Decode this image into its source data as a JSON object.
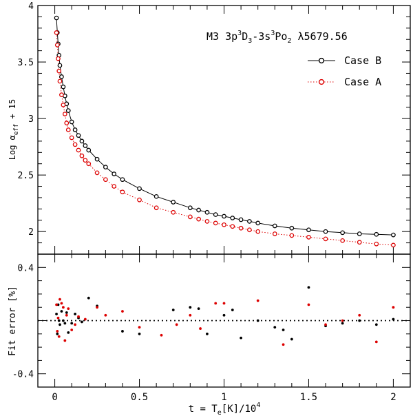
{
  "chart_data": [
    {
      "panel": "top",
      "type": "line",
      "title_parts": {
        "pre": "M3 3p",
        "sup1": "3",
        "mid1": "D",
        "sub1": "3",
        "mid2": "-3s",
        "sup2": "3",
        "mid3": "Po",
        "sub2": "2",
        "post": " λ5679.56"
      },
      "ylabel_parts": {
        "pre": "Log α",
        "sub": "eff",
        "post": " + 15"
      },
      "xlim": [
        -0.1,
        2.1
      ],
      "ylim": [
        1.8,
        4.0
      ],
      "yticks": [
        2,
        2.5,
        3,
        3.5,
        4
      ],
      "ytick_labels": [
        "2",
        "2.5",
        "3",
        "3.5",
        "4"
      ],
      "legend_position": "top-right",
      "series": [
        {
          "name": "Case B",
          "color": "#000000",
          "linestyle": "solid",
          "x": [
            0.01,
            0.015,
            0.02,
            0.025,
            0.03,
            0.04,
            0.05,
            0.06,
            0.07,
            0.08,
            0.1,
            0.12,
            0.14,
            0.16,
            0.18,
            0.2,
            0.25,
            0.3,
            0.35,
            0.4,
            0.5,
            0.6,
            0.7,
            0.8,
            0.85,
            0.9,
            0.95,
            1.0,
            1.05,
            1.1,
            1.15,
            1.2,
            1.3,
            1.4,
            1.5,
            1.6,
            1.7,
            1.8,
            1.9,
            2.0
          ],
          "y": [
            3.89,
            3.76,
            3.66,
            3.56,
            3.47,
            3.37,
            3.28,
            3.2,
            3.13,
            3.07,
            2.97,
            2.9,
            2.85,
            2.8,
            2.76,
            2.72,
            2.64,
            2.57,
            2.51,
            2.46,
            2.38,
            2.31,
            2.26,
            2.21,
            2.19,
            2.17,
            2.15,
            2.135,
            2.12,
            2.105,
            2.09,
            2.075,
            2.05,
            2.03,
            2.015,
            2.0,
            1.99,
            1.98,
            1.975,
            1.97
          ]
        },
        {
          "name": "Case A",
          "color": "#dd0000",
          "linestyle": "dotted",
          "x": [
            0.01,
            0.015,
            0.02,
            0.025,
            0.03,
            0.04,
            0.05,
            0.06,
            0.07,
            0.08,
            0.1,
            0.12,
            0.14,
            0.16,
            0.18,
            0.2,
            0.25,
            0.3,
            0.35,
            0.4,
            0.5,
            0.6,
            0.7,
            0.8,
            0.85,
            0.9,
            0.95,
            1.0,
            1.05,
            1.1,
            1.15,
            1.2,
            1.3,
            1.4,
            1.5,
            1.6,
            1.7,
            1.8,
            1.9,
            2.0
          ],
          "y": [
            3.76,
            3.65,
            3.53,
            3.42,
            3.33,
            3.21,
            3.12,
            3.04,
            2.96,
            2.9,
            2.83,
            2.77,
            2.72,
            2.67,
            2.63,
            2.6,
            2.52,
            2.46,
            2.4,
            2.35,
            2.28,
            2.21,
            2.17,
            2.13,
            2.11,
            2.09,
            2.075,
            2.06,
            2.045,
            2.03,
            2.015,
            2.0,
            1.98,
            1.965,
            1.95,
            1.935,
            1.92,
            1.905,
            1.89,
            1.88
          ]
        }
      ]
    },
    {
      "panel": "bottom",
      "type": "scatter",
      "ylabel": "Fit error [%]",
      "xlabel_parts": {
        "pre": "t = T",
        "sub": "e",
        "mid": "[K]/10",
        "sup": "4"
      },
      "xlim": [
        -0.1,
        2.1
      ],
      "ylim": [
        -0.5,
        0.5
      ],
      "xticks": [
        0,
        0.5,
        1,
        1.5,
        2
      ],
      "xtick_labels": [
        "0",
        "0.5",
        "1",
        "1.5",
        "2"
      ],
      "yticks": [
        0.4,
        -0.4
      ],
      "ytick_labels": [
        "0.4",
        "-0.4"
      ],
      "reference_line": 0,
      "series": [
        {
          "name": "Case B",
          "color": "#000000",
          "x": [
            0.01,
            0.015,
            0.02,
            0.025,
            0.03,
            0.04,
            0.05,
            0.06,
            0.07,
            0.08,
            0.1,
            0.12,
            0.14,
            0.16,
            0.2,
            0.25,
            0.4,
            0.5,
            0.7,
            0.8,
            0.85,
            0.9,
            1.0,
            1.05,
            1.1,
            1.2,
            1.3,
            1.35,
            1.4,
            1.5,
            1.6,
            1.7,
            1.8,
            1.9,
            2.0
          ],
          "y": [
            0.05,
            -0.1,
            0.12,
            0.0,
            -0.03,
            0.07,
            0.0,
            -0.02,
            0.06,
            -0.09,
            -0.02,
            0.05,
            0.02,
            -0.01,
            0.17,
            0.11,
            -0.08,
            -0.1,
            0.08,
            0.1,
            0.09,
            -0.1,
            0.04,
            0.08,
            -0.13,
            0.0,
            -0.05,
            -0.07,
            -0.14,
            0.25,
            -0.04,
            -0.02,
            0.0,
            -0.03,
            0.01
          ]
        },
        {
          "name": "Case A",
          "color": "#dd0000",
          "x": [
            0.01,
            0.015,
            0.02,
            0.025,
            0.03,
            0.04,
            0.05,
            0.06,
            0.07,
            0.08,
            0.1,
            0.12,
            0.14,
            0.18,
            0.25,
            0.3,
            0.4,
            0.5,
            0.63,
            0.72,
            0.8,
            0.86,
            0.95,
            1.0,
            1.2,
            1.35,
            1.5,
            1.6,
            1.7,
            1.8,
            1.9,
            2.0
          ],
          "y": [
            0.12,
            -0.08,
            0.02,
            -0.12,
            0.16,
            0.13,
            0.1,
            -0.15,
            0.04,
            0.09,
            -0.07,
            -0.03,
            0.03,
            0.01,
            0.1,
            0.04,
            0.07,
            -0.05,
            -0.11,
            -0.03,
            0.04,
            -0.06,
            0.13,
            0.13,
            0.15,
            -0.18,
            0.12,
            -0.03,
            0.0,
            0.04,
            -0.16,
            0.1
          ]
        }
      ]
    }
  ]
}
